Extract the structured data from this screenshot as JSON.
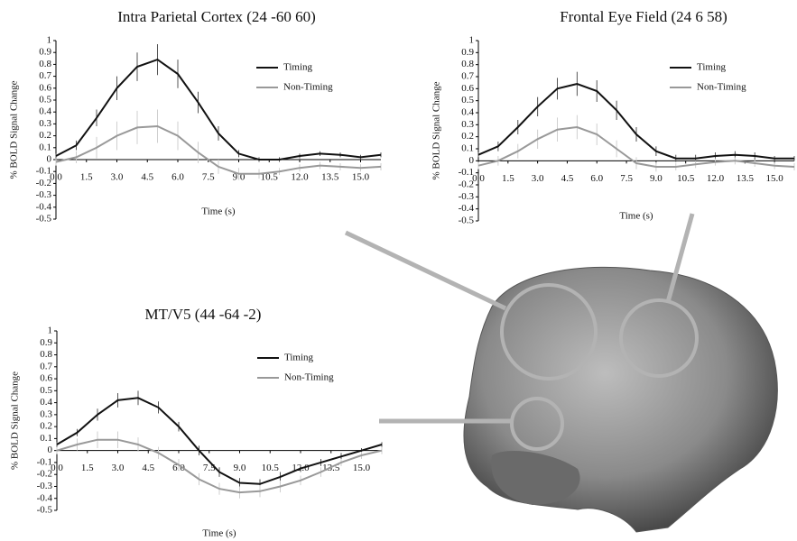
{
  "chart_data": [
    {
      "type": "line",
      "title": "Intra Parietal Cortex (24 -60 60)",
      "xlabel": "Time (s)",
      "ylabel": "% BOLD Signal Change",
      "x": [
        0,
        1,
        2,
        3,
        4,
        5,
        6,
        7,
        8,
        9,
        10,
        11,
        12,
        13,
        14,
        15,
        16
      ],
      "series": [
        {
          "name": "Timing",
          "color": "#111111",
          "values": [
            0.03,
            0.12,
            0.35,
            0.6,
            0.78,
            0.84,
            0.72,
            0.48,
            0.22,
            0.05,
            0.0,
            0.0,
            0.03,
            0.05,
            0.04,
            0.02,
            0.04
          ],
          "errors": [
            0.02,
            0.04,
            0.07,
            0.1,
            0.12,
            0.13,
            0.12,
            0.09,
            0.06,
            0.03,
            0.02,
            0.02,
            0.02,
            0.02,
            0.02,
            0.02,
            0.02
          ]
        },
        {
          "name": "Non-Timing",
          "color": "#999999",
          "values": [
            -0.02,
            0.02,
            0.1,
            0.2,
            0.27,
            0.28,
            0.2,
            0.06,
            -0.06,
            -0.12,
            -0.12,
            -0.1,
            -0.07,
            -0.05,
            -0.06,
            -0.07,
            -0.06
          ],
          "errors": [
            0.03,
            0.05,
            0.09,
            0.12,
            0.14,
            0.14,
            0.12,
            0.09,
            0.06,
            0.05,
            0.04,
            0.03,
            0.03,
            0.03,
            0.03,
            0.03,
            0.03
          ]
        }
      ],
      "xlim": [
        0,
        16
      ],
      "ylim": [
        -0.5,
        1
      ],
      "xticks": [
        {
          "value": 0,
          "label": "0.0"
        },
        1.5,
        {
          "value": 3,
          "label": "3.0"
        },
        4.5,
        {
          "value": 6,
          "label": "6.0"
        },
        7.5,
        {
          "value": 9,
          "label": "9.0"
        },
        10.5,
        {
          "value": 12,
          "label": "12.0"
        },
        13.5,
        {
          "value": 15,
          "label": "15.0"
        }
      ],
      "yticks": [
        1,
        0.9,
        0.8,
        0.7,
        0.6,
        0.5,
        0.4,
        0.3,
        0.2,
        0.1,
        0,
        -0.1,
        -0.2,
        -0.3,
        -0.4,
        -0.5
      ],
      "legend": "upper right"
    },
    {
      "type": "line",
      "title": "Frontal Eye Field (24 6 58)",
      "xlabel": "Time (s)",
      "ylabel": "% BOLD Signal Change",
      "x": [
        0,
        1,
        2,
        3,
        4,
        5,
        6,
        7,
        8,
        9,
        10,
        11,
        12,
        13,
        14,
        15,
        16
      ],
      "series": [
        {
          "name": "Timing",
          "color": "#111111",
          "values": [
            0.05,
            0.12,
            0.28,
            0.45,
            0.6,
            0.64,
            0.58,
            0.42,
            0.22,
            0.08,
            0.02,
            0.02,
            0.04,
            0.05,
            0.04,
            0.02,
            0.02
          ],
          "errors": [
            0.02,
            0.04,
            0.06,
            0.08,
            0.09,
            0.1,
            0.09,
            0.08,
            0.06,
            0.04,
            0.03,
            0.03,
            0.03,
            0.03,
            0.03,
            0.02,
            0.02
          ]
        },
        {
          "name": "Non-Timing",
          "color": "#999999",
          "values": [
            -0.04,
            0.0,
            0.08,
            0.18,
            0.26,
            0.28,
            0.22,
            0.1,
            -0.02,
            -0.05,
            -0.05,
            -0.03,
            -0.01,
            0.0,
            -0.02,
            -0.04,
            -0.05
          ],
          "errors": [
            0.03,
            0.04,
            0.06,
            0.08,
            0.1,
            0.1,
            0.09,
            0.07,
            0.05,
            0.04,
            0.03,
            0.03,
            0.03,
            0.03,
            0.03,
            0.03,
            0.03
          ]
        }
      ],
      "xlim": [
        0,
        16
      ],
      "ylim": [
        -0.5,
        1
      ],
      "xticks": [
        {
          "value": 0,
          "label": "0.0"
        },
        1.5,
        {
          "value": 3,
          "label": "3.0"
        },
        4.5,
        {
          "value": 6,
          "label": "6.0"
        },
        7.5,
        {
          "value": 9,
          "label": "9.0"
        },
        10.5,
        {
          "value": 12,
          "label": "12.0"
        },
        13.5,
        {
          "value": 15,
          "label": "15.0"
        }
      ],
      "yticks": [
        1,
        0.9,
        0.8,
        0.7,
        0.6,
        0.5,
        0.4,
        0.3,
        0.2,
        0.1,
        0,
        -0.1,
        -0.2,
        -0.3,
        -0.4,
        -0.5
      ],
      "legend": "upper right"
    },
    {
      "type": "line",
      "title": "MT/V5 (44 -64 -2)",
      "xlabel": "Time (s)",
      "ylabel": "% BOLD Signal Change",
      "x": [
        0,
        1,
        2,
        3,
        4,
        5,
        6,
        7,
        8,
        9,
        10,
        11,
        12,
        13,
        14,
        15,
        16
      ],
      "series": [
        {
          "name": "Timing",
          "color": "#111111",
          "values": [
            0.05,
            0.15,
            0.3,
            0.42,
            0.44,
            0.36,
            0.2,
            0.0,
            -0.18,
            -0.27,
            -0.28,
            -0.22,
            -0.15,
            -0.1,
            -0.05,
            0.0,
            0.05
          ],
          "errors": [
            0.02,
            0.03,
            0.05,
            0.06,
            0.06,
            0.05,
            0.04,
            0.04,
            0.04,
            0.04,
            0.04,
            0.04,
            0.03,
            0.03,
            0.03,
            0.02,
            0.02
          ]
        },
        {
          "name": "Non-Timing",
          "color": "#999999",
          "values": [
            0.0,
            0.05,
            0.09,
            0.09,
            0.05,
            -0.02,
            -0.12,
            -0.24,
            -0.32,
            -0.35,
            -0.34,
            -0.3,
            -0.25,
            -0.18,
            -0.1,
            -0.04,
            0.0
          ],
          "errors": [
            0.03,
            0.05,
            0.07,
            0.07,
            0.06,
            0.05,
            0.05,
            0.05,
            0.05,
            0.05,
            0.05,
            0.05,
            0.04,
            0.04,
            0.03,
            0.03,
            0.03
          ]
        }
      ],
      "xlim": [
        0,
        16
      ],
      "ylim": [
        -0.5,
        1
      ],
      "xticks": [
        {
          "value": 0,
          "label": "0.0"
        },
        1.5,
        {
          "value": 3,
          "label": "3.0"
        },
        4.5,
        {
          "value": 6,
          "label": "6.0"
        },
        7.5,
        {
          "value": 9,
          "label": "9.0"
        },
        10.5,
        {
          "value": 12,
          "label": "12.0"
        },
        13.5,
        {
          "value": 15,
          "label": "15.0"
        }
      ],
      "yticks": [
        1,
        0.9,
        0.8,
        0.7,
        0.6,
        0.5,
        0.4,
        0.3,
        0.2,
        0.1,
        0,
        -0.1,
        -0.2,
        -0.3,
        -0.4,
        -0.5
      ],
      "legend": "upper right"
    }
  ]
}
